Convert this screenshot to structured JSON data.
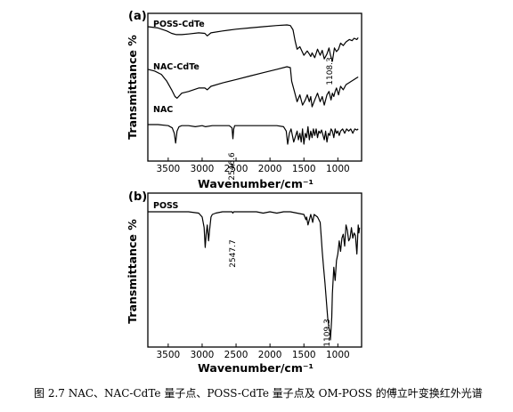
{
  "caption": "图 2.7 NAC、NAC-CdTe 量子点、POSS-CdTe 量子点及 OM-POSS 的傅立叶变换红外光谱",
  "chart_data": [
    {
      "type": "line",
      "panel_label": "(a)",
      "xlabel": "Wavenumber/cm⁻¹",
      "ylabel": "Transmittance %",
      "xlim": [
        3800,
        650
      ],
      "x_reversed": true,
      "x_ticks": [
        3500,
        3000,
        2500,
        2000,
        1500,
        1000
      ],
      "grid": false,
      "series": [
        {
          "name": "POSS-CdTe",
          "x": [
            3800,
            3650,
            3520,
            3450,
            3380,
            3300,
            3200,
            3050,
            2960,
            2925,
            2870,
            2700,
            2500,
            2300,
            2100,
            1900,
            1750,
            1700,
            1660,
            1630,
            1600,
            1560,
            1500,
            1450,
            1420,
            1400,
            1380,
            1340,
            1300,
            1260,
            1230,
            1200,
            1160,
            1130,
            1108,
            1080,
            1050,
            1020,
            990,
            960,
            920,
            880,
            830,
            790,
            760,
            720,
            700
          ],
          "y": [
            85,
            83,
            78,
            74,
            72,
            72,
            73,
            75,
            74,
            70,
            75,
            78,
            81,
            83,
            85,
            87,
            88,
            87,
            80,
            62,
            48,
            52,
            38,
            45,
            40,
            36,
            42,
            34,
            48,
            38,
            46,
            32,
            40,
            50,
            38,
            28,
            50,
            44,
            48,
            58,
            54,
            60,
            64,
            62,
            66,
            64,
            67
          ]
        },
        {
          "name": "NAC-CdTe",
          "x": [
            3800,
            3700,
            3600,
            3520,
            3450,
            3400,
            3370,
            3300,
            3200,
            3050,
            2960,
            2925,
            2870,
            2700,
            2500,
            2300,
            2100,
            1900,
            1750,
            1700,
            1680,
            1640,
            1600,
            1560,
            1520,
            1480,
            1450,
            1420,
            1400,
            1380,
            1340,
            1300,
            1260,
            1230,
            1200,
            1160,
            1130,
            1100,
            1080,
            1060,
            1040,
            1020,
            990,
            960,
            920,
            880,
            840,
            800,
            760,
            720,
            700
          ],
          "y": [
            44,
            42,
            38,
            30,
            20,
            12,
            10,
            16,
            18,
            22,
            22,
            20,
            24,
            28,
            32,
            36,
            40,
            44,
            47,
            46,
            30,
            18,
            6,
            14,
            2,
            8,
            14,
            6,
            12,
            0,
            8,
            16,
            6,
            12,
            2,
            14,
            18,
            8,
            16,
            12,
            18,
            22,
            14,
            24,
            20,
            26,
            28,
            30,
            32,
            34,
            35
          ]
        },
        {
          "name": "NAC",
          "x": [
            3800,
            3650,
            3500,
            3440,
            3410,
            3390,
            3370,
            3340,
            3300,
            3200,
            3100,
            3000,
            2950,
            2850,
            2700,
            2600,
            2560,
            2547,
            2535,
            2520,
            2450,
            2300,
            2150,
            2000,
            1900,
            1800,
            1760,
            1740,
            1715,
            1690,
            1650,
            1600,
            1580,
            1560,
            1540,
            1520,
            1500,
            1480,
            1460,
            1440,
            1420,
            1400,
            1380,
            1360,
            1340,
            1320,
            1300,
            1280,
            1260,
            1240,
            1200,
            1180,
            1160,
            1140,
            1120,
            1100,
            1080,
            1060,
            1040,
            1020,
            1000,
            980,
            960,
            930,
            900,
            870,
            840,
            810,
            780,
            750,
            720,
            700
          ],
          "y": [
            -4,
            -4,
            -5,
            -7,
            -12,
            -21,
            -10,
            -6,
            -5,
            -5,
            -6,
            -5,
            -6,
            -5,
            -5,
            -5,
            -7,
            -17,
            -8,
            -5,
            -5,
            -5,
            -5,
            -5,
            -5,
            -6,
            -10,
            -22,
            -12,
            -8,
            -20,
            -10,
            -18,
            -12,
            -20,
            -8,
            -22,
            -12,
            -16,
            -6,
            -18,
            -10,
            -16,
            -8,
            -14,
            -8,
            -16,
            -10,
            -12,
            -9,
            -18,
            -10,
            -20,
            -12,
            -14,
            -8,
            -10,
            -16,
            -8,
            -12,
            -10,
            -14,
            -10,
            -8,
            -12,
            -8,
            -10,
            -8,
            -12,
            -8,
            -9,
            -8
          ]
        }
      ],
      "annotations": [
        {
          "text": "1108.3",
          "x": 1108,
          "y": 55
        },
        {
          "text": "2546.6",
          "x": 2546.6,
          "y": -30
        }
      ]
    },
    {
      "type": "line",
      "panel_label": "(b)",
      "xlabel": "Wavenumber/cm⁻¹",
      "ylabel": "Transmittance %",
      "xlim": [
        3800,
        650
      ],
      "x_reversed": true,
      "x_ticks": [
        3500,
        3000,
        2500,
        2000,
        1500,
        1000
      ],
      "grid": false,
      "series": [
        {
          "name": "POSS",
          "x": [
            3800,
            3600,
            3400,
            3200,
            3050,
            3000,
            2970,
            2955,
            2940,
            2925,
            2905,
            2890,
            2870,
            2850,
            2800,
            2700,
            2600,
            2560,
            2547,
            2535,
            2500,
            2400,
            2300,
            2200,
            2100,
            2000,
            1900,
            1800,
            1700,
            1600,
            1500,
            1470,
            1460,
            1440,
            1400,
            1380,
            1370,
            1350,
            1300,
            1260,
            1240,
            1230,
            1210,
            1190,
            1170,
            1150,
            1130,
            1115,
            1109,
            1100,
            1090,
            1080,
            1060,
            1040,
            1020,
            1000,
            980,
            960,
            940,
            920,
            900,
            880,
            860,
            840,
            820,
            800,
            780,
            760,
            740,
            720,
            710,
            700,
            690,
            680
          ],
          "y": [
            92,
            92,
            92,
            92,
            91,
            88,
            80,
            65,
            75,
            82,
            70,
            78,
            88,
            90,
            91,
            92,
            92,
            92,
            91,
            92,
            92,
            92,
            92,
            92,
            91,
            92,
            91,
            92,
            92,
            91,
            90,
            86,
            88,
            82,
            90,
            86,
            84,
            90,
            88,
            84,
            70,
            62,
            50,
            38,
            25,
            12,
            4,
            1,
            -5,
            3,
            12,
            30,
            50,
            40,
            55,
            60,
            70,
            62,
            72,
            75,
            66,
            82,
            78,
            70,
            72,
            80,
            72,
            76,
            74,
            60,
            70,
            82,
            76,
            80
          ]
        }
      ],
      "annotations": [
        {
          "text": "2547.7",
          "x": 2547.7,
          "y": 60
        },
        {
          "text": "1109.3",
          "x": 1109.3,
          "y": -20
        }
      ]
    }
  ]
}
